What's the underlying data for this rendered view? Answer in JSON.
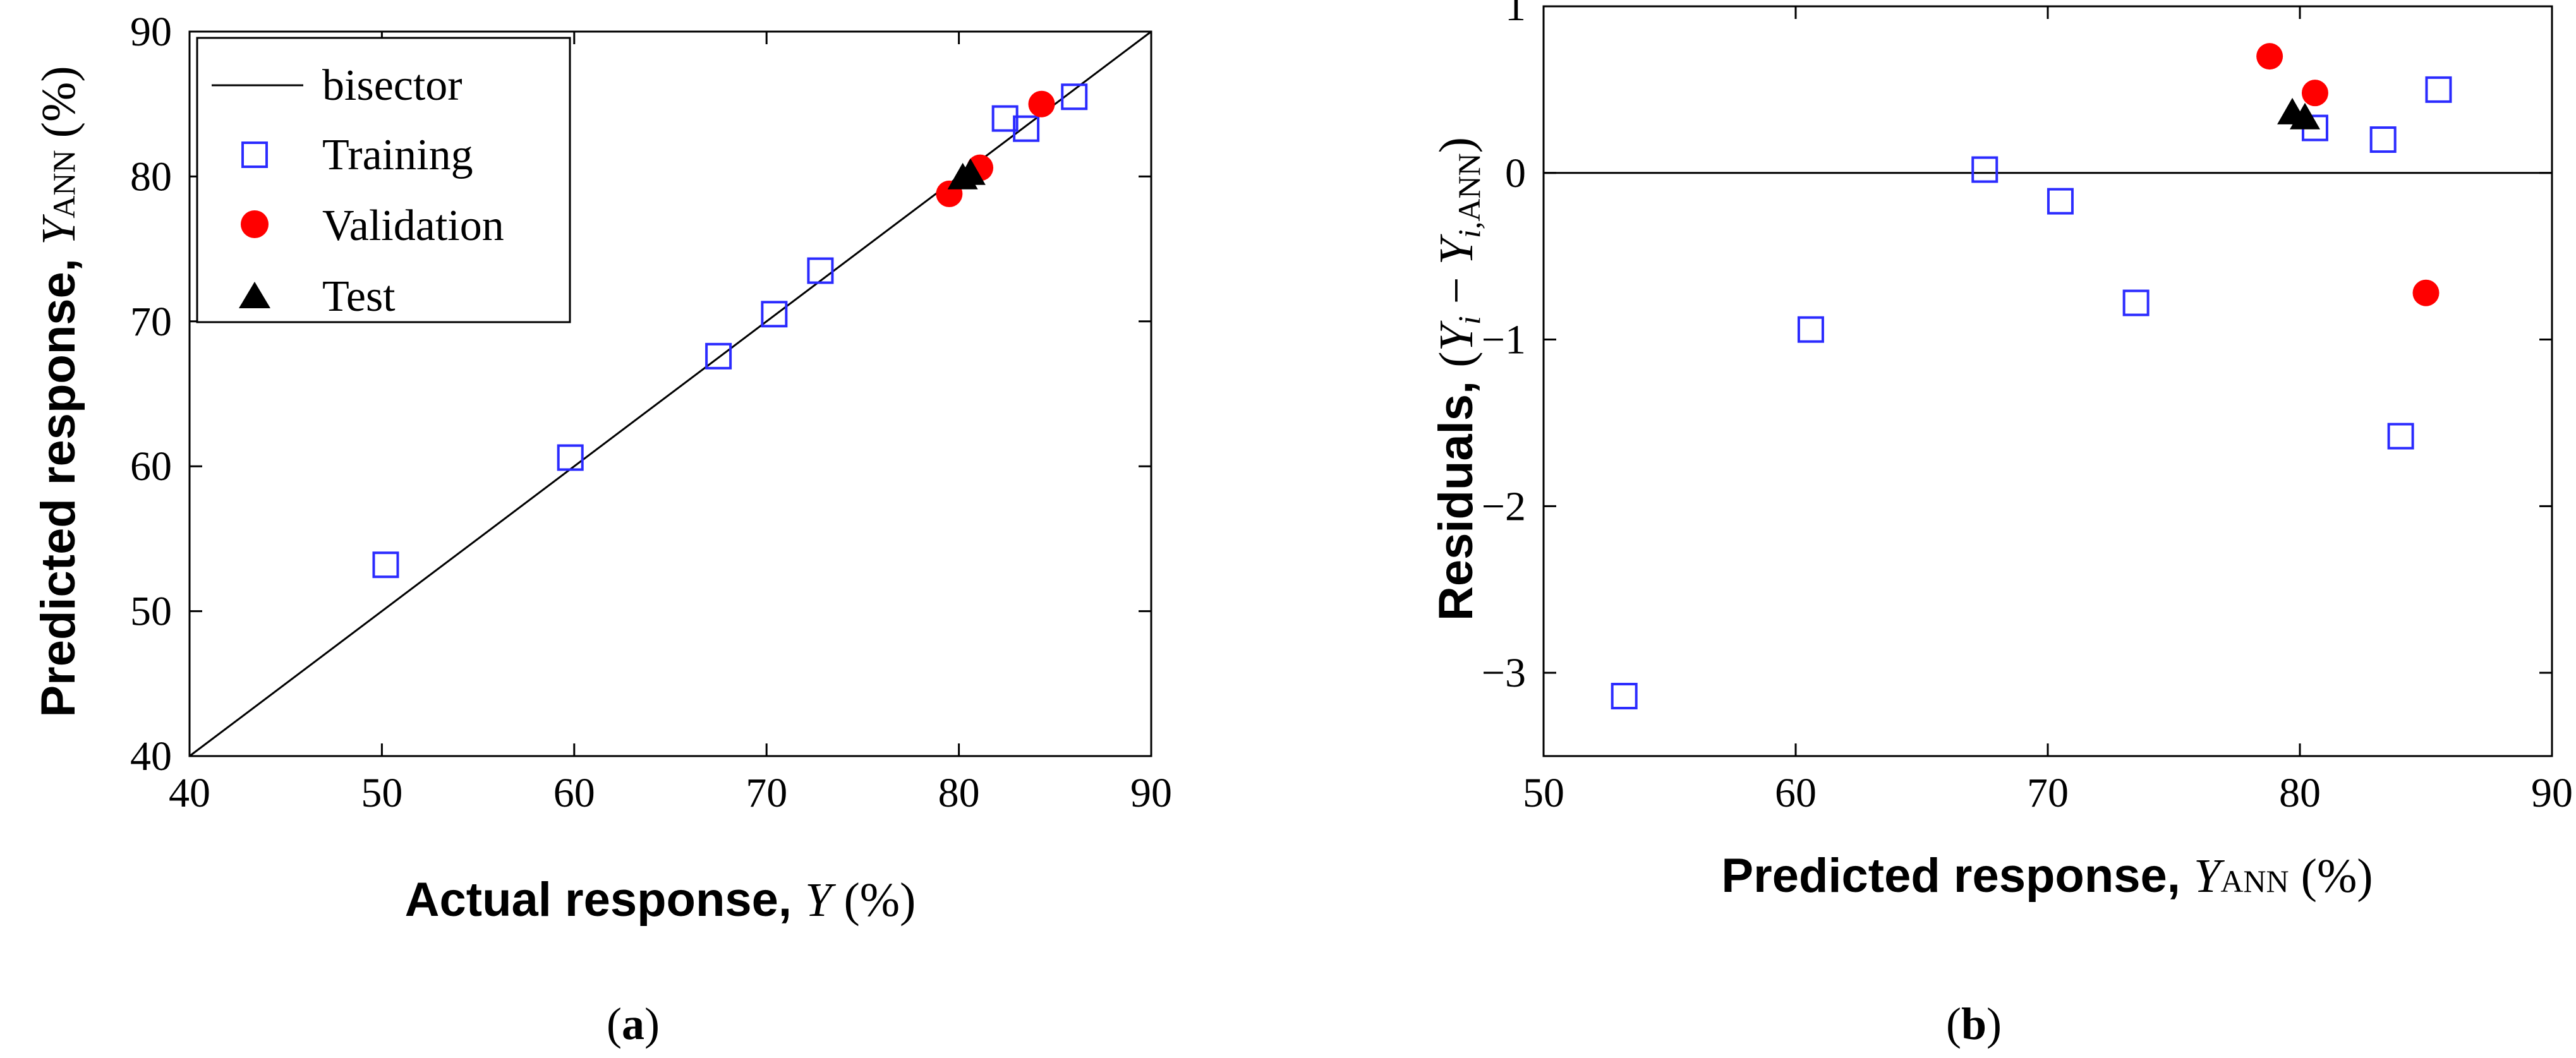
{
  "colors": {
    "training": "#2b2bff",
    "validation": "#ff0000",
    "test": "#000000",
    "line": "#000000"
  },
  "chart_data": [
    {
      "type": "scatter",
      "panel_caption": {
        "open": "(",
        "letter": "a",
        "close": ")"
      },
      "xlabel": {
        "text": "Actual response, ",
        "symbol": "Y",
        "unit": " (%)"
      },
      "ylabel": {
        "text": "Predicted response, ",
        "symbol": "Y",
        "sub": "ANN",
        "unit": " (%)"
      },
      "xlim": [
        40,
        90
      ],
      "ylim": [
        40,
        90
      ],
      "xticks": [
        "40",
        "50",
        "60",
        "70",
        "80",
        "90"
      ],
      "yticks": [
        "40",
        "50",
        "60",
        "70",
        "80",
        "90"
      ],
      "reference_line": {
        "name": "bisector",
        "x": [
          40,
          90
        ],
        "y": [
          40,
          90
        ]
      },
      "legend": [
        "bisector",
        "Training",
        "Validation",
        "Test"
      ],
      "legend_position": "top-left",
      "series": [
        {
          "name": "Training",
          "marker": "square-open",
          "points": [
            [
              50.2,
              53.2
            ],
            [
              59.8,
              60.6
            ],
            [
              67.5,
              67.6
            ],
            [
              70.4,
              70.5
            ],
            [
              72.8,
              73.5
            ],
            [
              82.4,
              84.0
            ],
            [
              83.5,
              83.3
            ],
            [
              86.0,
              85.5
            ]
          ]
        },
        {
          "name": "Validation",
          "marker": "circle-filled",
          "points": [
            [
              79.5,
              78.8
            ],
            [
              81.1,
              80.6
            ],
            [
              84.3,
              85.0
            ]
          ]
        },
        {
          "name": "Test",
          "marker": "triangle-filled",
          "points": [
            [
              80.2,
              79.9
            ],
            [
              80.6,
              80.2
            ]
          ]
        }
      ]
    },
    {
      "type": "scatter",
      "panel_caption": {
        "open": "(",
        "letter": "b",
        "close": ")"
      },
      "xlabel": {
        "text": "Predicted response, ",
        "symbol": "Y",
        "sub": "ANN",
        "unit": " (%)"
      },
      "ylabel": {
        "text": "Residuals, ",
        "open": "(",
        "sym1": "Y",
        "sub1": "i",
        "minus": " − ",
        "sym2": "Y",
        "sub2": "i,",
        "sub2b": "ANN",
        "close": ")"
      },
      "xlim": [
        50,
        90
      ],
      "ylim": [
        -3.5,
        1
      ],
      "xticks": [
        "50",
        "60",
        "70",
        "80",
        "90"
      ],
      "yticks": [
        "−3",
        "−2",
        "−1",
        "0",
        "1"
      ],
      "ytick_values": [
        -3,
        -2,
        -1,
        0,
        1
      ],
      "reference_line": {
        "name": "zero",
        "y": 0
      },
      "series": [
        {
          "name": "Training",
          "marker": "square-open",
          "points": [
            [
              53.2,
              -3.14
            ],
            [
              60.6,
              -0.94
            ],
            [
              67.5,
              0.02
            ],
            [
              70.5,
              -0.17
            ],
            [
              73.5,
              -0.78
            ],
            [
              80.6,
              0.27
            ],
            [
              83.3,
              0.2
            ],
            [
              84.0,
              -1.58
            ],
            [
              85.5,
              0.5
            ]
          ]
        },
        {
          "name": "Validation",
          "marker": "circle-filled",
          "points": [
            [
              78.8,
              0.7
            ],
            [
              80.6,
              0.48
            ],
            [
              85.0,
              -0.72
            ]
          ]
        },
        {
          "name": "Test",
          "marker": "triangle-filled",
          "points": [
            [
              79.7,
              0.36
            ],
            [
              80.2,
              0.33
            ]
          ]
        }
      ]
    }
  ]
}
